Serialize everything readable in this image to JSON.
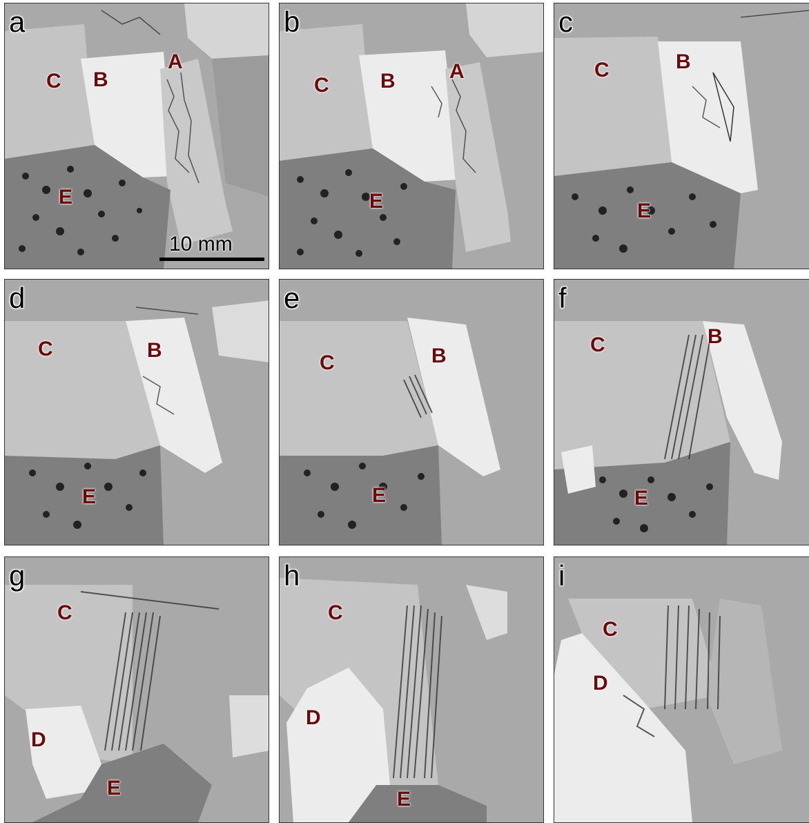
{
  "colors": {
    "label": "#6b0a0a",
    "matrix_gray": "#a9a9a9",
    "grain_c": "#c4c4c4",
    "grain_bright": "#ececec",
    "porous_dark": "#555555"
  },
  "scale_bar": {
    "label": "10 mm"
  },
  "panels": [
    {
      "letter": "a",
      "labels": {
        "A": "A",
        "B": "B",
        "C": "C",
        "E": "E"
      }
    },
    {
      "letter": "b",
      "labels": {
        "A": "A",
        "B": "B",
        "C": "C",
        "E": "E"
      }
    },
    {
      "letter": "c",
      "labels": {
        "B": "B",
        "C": "C",
        "E": "E"
      }
    },
    {
      "letter": "d",
      "labels": {
        "B": "B",
        "C": "C",
        "E": "E"
      }
    },
    {
      "letter": "e",
      "labels": {
        "B": "B",
        "C": "C",
        "E": "E"
      }
    },
    {
      "letter": "f",
      "labels": {
        "B": "B",
        "C": "C",
        "E": "E"
      }
    },
    {
      "letter": "g",
      "labels": {
        "C": "C",
        "D": "D",
        "E": "E"
      }
    },
    {
      "letter": "h",
      "labels": {
        "C": "C",
        "D": "D",
        "E": "E"
      }
    },
    {
      "letter": "i",
      "labels": {
        "C": "C",
        "D": "D"
      }
    }
  ]
}
